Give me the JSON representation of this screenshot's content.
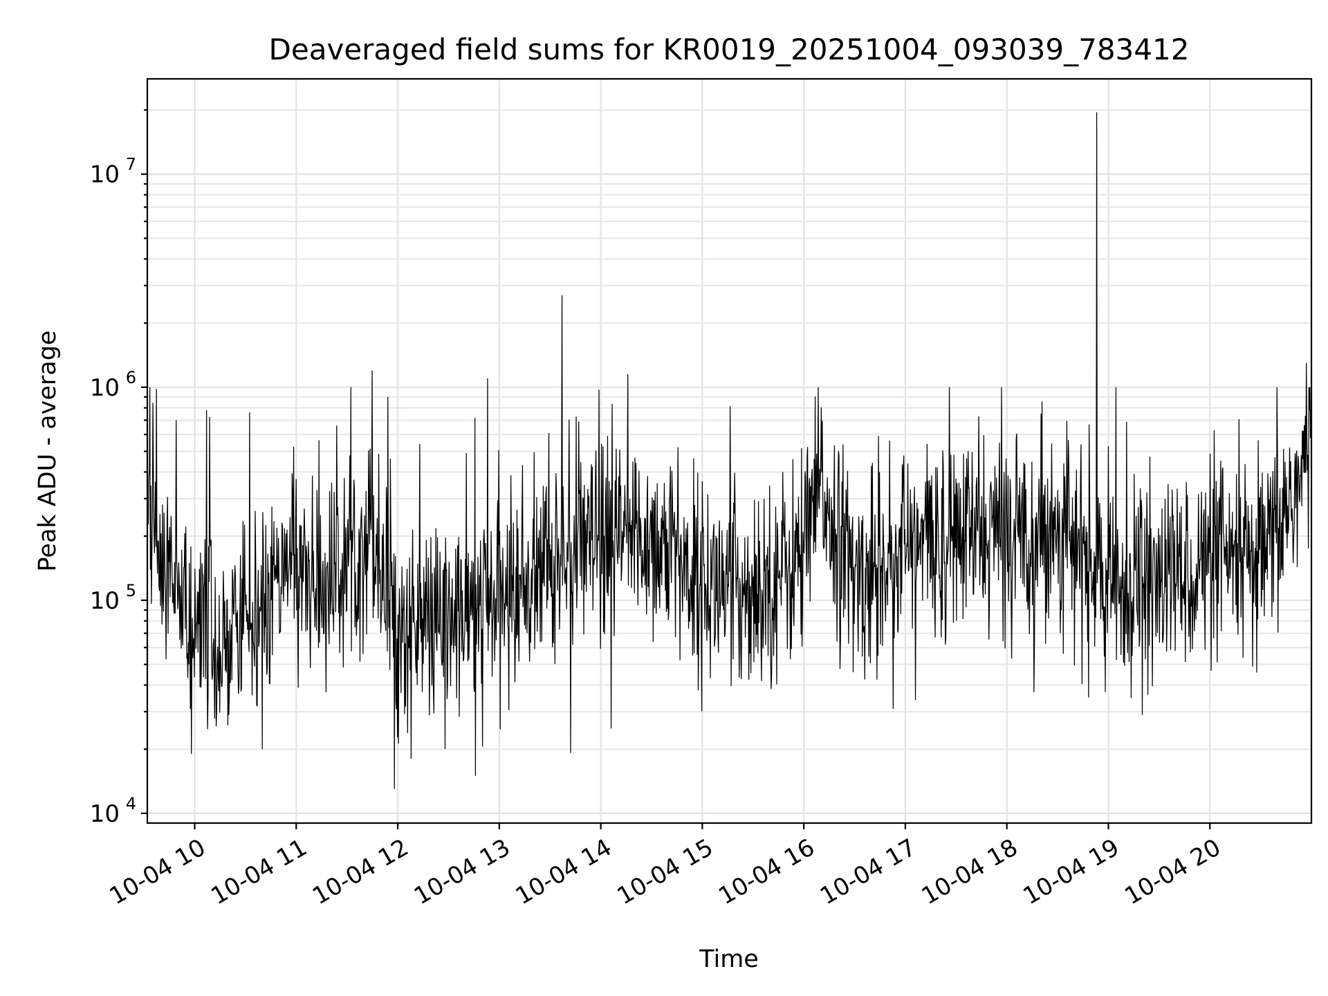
{
  "chart_data": {
    "type": "line",
    "title": "Deaveraged field sums for KR0019_20251004_093039_783412",
    "xlabel": "Time",
    "ylabel": "Peak ADU - average",
    "y_scale": "log",
    "grid": "on (major and minor)",
    "legend": "none",
    "line_color": "#000000",
    "grid_color": "#e3e3e3",
    "xlim": [
      "2025-10-04 09:32:00",
      "2025-10-04 21:00:00"
    ],
    "ylim": [
      9000,
      28000000
    ],
    "x_tick_labels": [
      "10-04 10",
      "10-04 11",
      "10-04 12",
      "10-04 13",
      "10-04 14",
      "10-04 15",
      "10-04 16",
      "10-04 17",
      "10-04 18",
      "10-04 19",
      "10-04 20"
    ],
    "x_tick_values": [
      "2025-10-04 10:00",
      "2025-10-04 11:00",
      "2025-10-04 12:00",
      "2025-10-04 13:00",
      "2025-10-04 14:00",
      "2025-10-04 15:00",
      "2025-10-04 16:00",
      "2025-10-04 17:00",
      "2025-10-04 18:00",
      "2025-10-04 19:00",
      "2025-10-04 20:00"
    ],
    "y_ticks": [
      {
        "value": 10000,
        "base": "10",
        "exp": "4"
      },
      {
        "value": 100000,
        "base": "10",
        "exp": "5"
      },
      {
        "value": 1000000,
        "base": "10",
        "exp": "6"
      },
      {
        "value": 10000000,
        "base": "10",
        "exp": "7"
      }
    ],
    "series_profile": {
      "x": [
        "2025-10-04 09:32",
        "2025-10-04 09:40",
        "2025-10-04 10:00",
        "2025-10-04 10:30",
        "2025-10-04 11:00",
        "2025-10-04 11:15",
        "2025-10-04 11:45",
        "2025-10-04 12:00",
        "2025-10-04 12:30",
        "2025-10-04 13:00",
        "2025-10-04 13:30",
        "2025-10-04 14:00",
        "2025-10-04 14:30",
        "2025-10-04 15:00",
        "2025-10-04 15:30",
        "2025-10-04 16:00",
        "2025-10-04 16:10",
        "2025-10-04 16:30",
        "2025-10-04 17:00",
        "2025-10-04 17:30",
        "2025-10-04 18:00",
        "2025-10-04 18:30",
        "2025-10-04 19:00",
        "2025-10-04 19:30",
        "2025-10-04 20:00",
        "2025-10-04 20:30",
        "2025-10-04 21:00"
      ],
      "median": [
        300000,
        150000,
        70000,
        80000,
        150000,
        110000,
        220000,
        70000,
        80000,
        100000,
        150000,
        180000,
        200000,
        120000,
        110000,
        160000,
        350000,
        120000,
        180000,
        200000,
        210000,
        220000,
        110000,
        120000,
        150000,
        140000,
        500000
      ]
    },
    "spikes": [
      {
        "x": "2025-10-04 09:49",
        "y": 700000
      },
      {
        "x": "2025-10-04 10:07",
        "y": 780000
      },
      {
        "x": "2025-10-04 11:45",
        "y": 1200000
      },
      {
        "x": "2025-10-04 11:54",
        "y": 900000
      },
      {
        "x": "2025-10-04 12:53",
        "y": 1100000
      },
      {
        "x": "2025-10-04 13:37",
        "y": 2700000
      },
      {
        "x": "2025-10-04 14:16",
        "y": 1150000
      },
      {
        "x": "2025-10-04 18:53",
        "y": 19500000
      },
      {
        "x": "2025-10-04 20:57",
        "y": 1300000
      }
    ],
    "dips": [
      {
        "x": "2025-10-04 09:58",
        "y": 19000
      },
      {
        "x": "2025-10-04 10:40",
        "y": 20000
      },
      {
        "x": "2025-10-04 11:58",
        "y": 13000
      },
      {
        "x": "2025-10-04 12:46",
        "y": 15000
      },
      {
        "x": "2025-10-04 12:28",
        "y": 20000
      },
      {
        "x": "2025-10-04 14:06",
        "y": 25000
      },
      {
        "x": "2025-10-04 17:06",
        "y": 34000
      },
      {
        "x": "2025-10-04 18:16",
        "y": 37000
      },
      {
        "x": "2025-10-04 19:20",
        "y": 29000
      }
    ]
  }
}
